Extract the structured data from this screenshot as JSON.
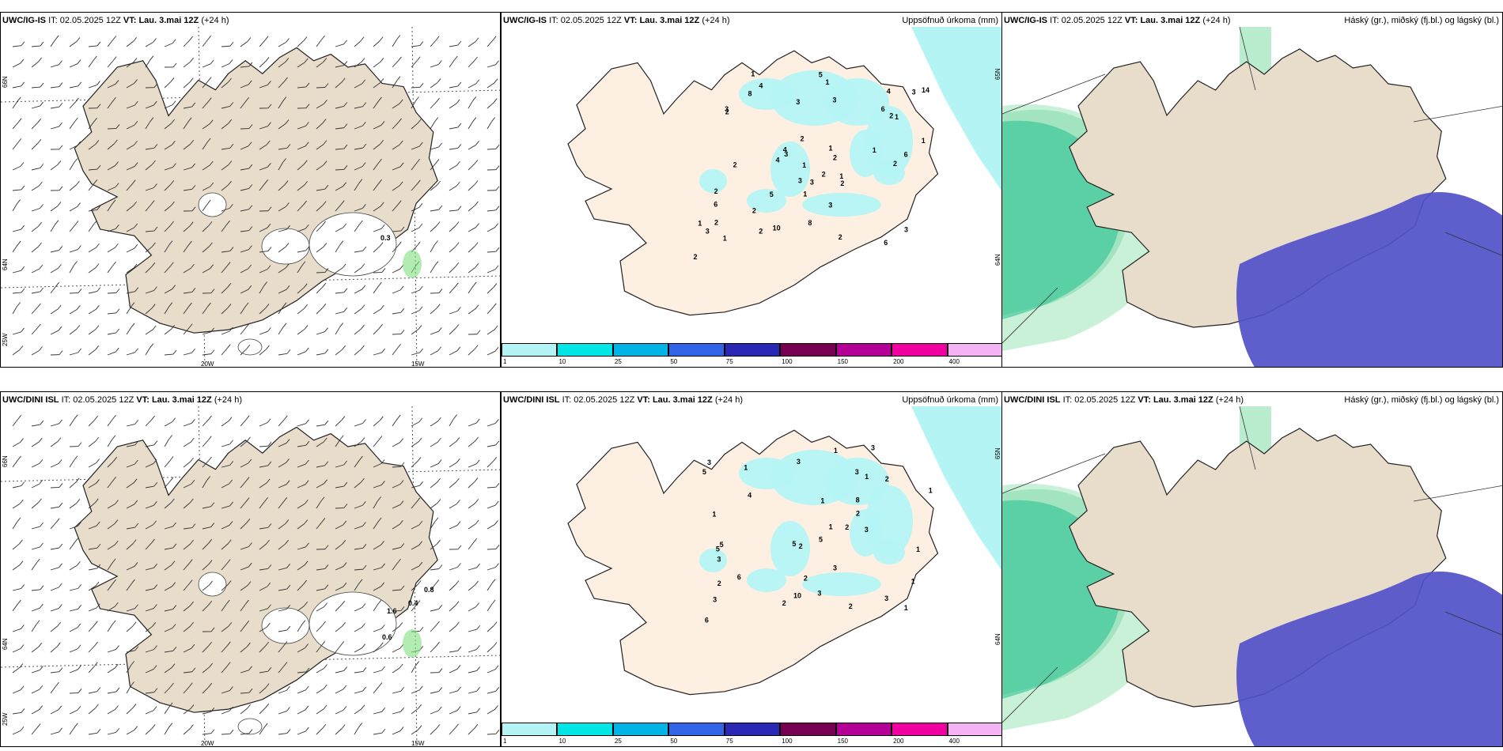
{
  "rows": [
    {
      "model": "UWC/IG-IS",
      "it_label": "IT:",
      "it_value": "02.05.2025 12Z",
      "vt_label": "VT:",
      "vt_value": "Lau. 3.mai 12Z",
      "lead": "(+24 h)"
    },
    {
      "model": "UWC/DINI ISL",
      "it_label": "IT:",
      "it_value": "02.05.2025 12Z",
      "vt_label": "VT:",
      "vt_value": "Lau. 3.mai 12Z",
      "lead": "(+24 h)"
    }
  ],
  "precip_title": "Uppsöfnuð úrkoma (mm)",
  "cloud_title": "Háský (gr.), miðský (fj.bl.) og lágský (bl.)",
  "axis": {
    "lat_66": "66N",
    "lat_64": "64N",
    "lon_20": "20W",
    "lon_15": "15W",
    "lon_25": "25W",
    "lat_65": "65N"
  },
  "colorbar": {
    "ticks": [
      "1",
      "10",
      "25",
      "50",
      "75",
      "100",
      "150",
      "200",
      "400"
    ],
    "colors": [
      "#b4f4f4",
      "#00e6e6",
      "#00b4e6",
      "#3264e6",
      "#2828b4",
      "#780050",
      "#b40096",
      "#f000a0",
      "#f4b4f4"
    ]
  },
  "colors": {
    "land_wind": "#e8dccb",
    "land_precip": "#fdf0e3",
    "land_cloud": "#e8dccb",
    "precip_light": "#b4f4f4",
    "cloud_low": "#5050c8",
    "cloud_high_green": "#20c090"
  },
  "precip_labels_top": [
    "8",
    "6",
    "3",
    "6",
    "6",
    "2",
    "2",
    "2",
    "5",
    "3",
    "6",
    "4",
    "3",
    "14",
    "10",
    "1",
    "1",
    "2",
    "5",
    "2",
    "2",
    "4",
    "1",
    "2",
    "3",
    "3",
    "2",
    "3",
    "4",
    "4",
    "2",
    "1",
    "8",
    "1",
    "3",
    "3",
    "3",
    "2",
    "1",
    "2",
    "2",
    "3",
    "1",
    "2",
    "2",
    "1",
    "1",
    "1",
    "1"
  ],
  "precip_labels_bottom": [
    "3",
    "4",
    "8",
    "3",
    "5",
    "3",
    "6",
    "2",
    "3",
    "6",
    "3",
    "2",
    "10",
    "5",
    "5",
    "5",
    "3",
    "2",
    "1",
    "1",
    "3",
    "1",
    "2",
    "5",
    "3",
    "3",
    "1",
    "3",
    "1",
    "2",
    "2",
    "2",
    "2",
    "1",
    "1",
    "1",
    "1",
    "1"
  ],
  "wind_markers_top": [
    "0.3"
  ],
  "wind_markers_bottom": [
    "0.8",
    "0.4",
    "1.6",
    "0.6"
  ]
}
